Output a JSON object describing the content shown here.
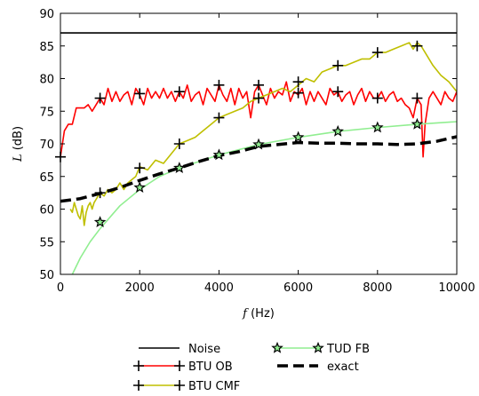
{
  "chart_data": {
    "type": "line",
    "title": "",
    "xlabel_var": "f",
    "xlabel_unit": " (Hz)",
    "ylabel_var": "L",
    "ylabel_unit": " (dB)",
    "xlim": [
      0,
      10000
    ],
    "ylim": [
      50,
      90
    ],
    "xticks": [
      "0",
      "2000",
      "4000",
      "6000",
      "8000",
      "10000"
    ],
    "yticks": [
      "50",
      "55",
      "60",
      "65",
      "70",
      "75",
      "80",
      "85",
      "90"
    ],
    "grid": false,
    "legend_position": "below",
    "series": [
      {
        "name": "Noise",
        "color": "#000000",
        "style": "solid",
        "marker": "none",
        "x": [
          0,
          10000
        ],
        "y": [
          87,
          87
        ]
      },
      {
        "name": "BTU OB",
        "color": "#ff0000",
        "style": "solid",
        "marker": "plus",
        "x": [
          0,
          100,
          200,
          300,
          400,
          500,
          600,
          700,
          800,
          900,
          1000,
          1100,
          1200,
          1300,
          1400,
          1500,
          1600,
          1700,
          1800,
          1900,
          2000,
          2100,
          2200,
          2300,
          2400,
          2500,
          2600,
          2700,
          2800,
          2900,
          3000,
          3100,
          3200,
          3300,
          3400,
          3500,
          3600,
          3700,
          3800,
          3900,
          4000,
          4100,
          4200,
          4300,
          4400,
          4500,
          4600,
          4700,
          4800,
          4900,
          5000,
          5100,
          5200,
          5300,
          5400,
          5500,
          5600,
          5700,
          5800,
          5900,
          6000,
          6100,
          6200,
          6300,
          6400,
          6500,
          6600,
          6700,
          6800,
          6900,
          7000,
          7100,
          7200,
          7300,
          7400,
          7500,
          7600,
          7700,
          7800,
          7900,
          8000,
          8100,
          8200,
          8300,
          8400,
          8500,
          8600,
          8700,
          8800,
          8900,
          9000,
          9100,
          9150,
          9200,
          9300,
          9400,
          9500,
          9600,
          9700,
          9800,
          9900,
          10000
        ],
        "y": [
          68,
          72,
          73,
          73,
          75.5,
          75.5,
          75.5,
          76,
          75,
          76,
          77,
          76,
          78.5,
          76.5,
          78,
          76.5,
          77.5,
          78,
          76,
          78.5,
          77.5,
          76,
          78.5,
          77,
          78,
          77,
          78.5,
          77,
          78,
          76.5,
          78,
          77,
          79,
          76.5,
          77.5,
          78,
          76,
          78.5,
          77.5,
          76.5,
          79,
          77.5,
          76.5,
          78.5,
          76,
          78.5,
          77,
          78,
          74,
          78,
          79,
          77.5,
          76,
          78.5,
          77,
          78,
          77.5,
          79.5,
          76.5,
          78,
          77.5,
          78.5,
          76,
          78,
          76.5,
          78,
          77,
          76,
          78.5,
          77.5,
          78,
          76.5,
          77.5,
          78,
          76,
          77.5,
          78.5,
          76.5,
          78,
          77,
          77,
          78,
          76.5,
          77.5,
          78,
          76.5,
          77,
          76,
          75.5,
          74,
          77,
          76,
          68,
          73,
          77,
          78,
          77,
          76,
          78,
          77,
          76.5,
          78
        ]
      },
      {
        "name": "BTU CMF",
        "color": "#bfbf00",
        "style": "solid",
        "marker": "plus",
        "x": [
          250,
          300,
          350,
          400,
          450,
          500,
          550,
          600,
          650,
          700,
          750,
          800,
          850,
          900,
          950,
          1000,
          1100,
          1200,
          1300,
          1400,
          1500,
          1600,
          1700,
          1800,
          1900,
          2000,
          2200,
          2400,
          2600,
          2800,
          3000,
          3200,
          3400,
          3600,
          3800,
          4000,
          4200,
          4400,
          4600,
          4800,
          5000,
          5200,
          5400,
          5600,
          5800,
          6000,
          6200,
          6400,
          6600,
          6800,
          7000,
          7200,
          7400,
          7600,
          7800,
          8000,
          8200,
          8400,
          8600,
          8800,
          8900,
          9000,
          9100,
          9200,
          9400,
          9600,
          9800,
          10000
        ],
        "y": [
          60,
          59.5,
          61,
          60,
          59,
          58.5,
          60.5,
          57.5,
          59.5,
          60.5,
          61,
          60,
          61,
          61.5,
          62,
          62.5,
          62,
          63,
          62.5,
          63,
          64,
          63,
          64,
          64.5,
          65,
          66.5,
          66,
          67.5,
          67,
          68.5,
          70,
          70.5,
          71,
          72,
          73,
          74,
          74.5,
          75,
          75.5,
          76.5,
          77,
          77.5,
          78,
          78.5,
          78,
          79,
          80,
          79.5,
          81,
          81.5,
          82,
          82,
          82.5,
          83,
          83,
          84,
          84,
          84.5,
          85,
          85.5,
          84.5,
          85.5,
          85,
          84,
          82,
          80.5,
          79.5,
          78
        ]
      },
      {
        "name": "TUD FB",
        "color": "#90ee90",
        "style": "solid",
        "marker": "star",
        "x": [
          300,
          500,
          750,
          1000,
          1500,
          2000,
          2500,
          3000,
          3500,
          4000,
          5000,
          6000,
          7000,
          8000,
          9000,
          10000
        ],
        "y": [
          50,
          52.5,
          55,
          57,
          60.5,
          63,
          65,
          66.3,
          67.3,
          68.3,
          69.9,
          71.0,
          71.9,
          72.5,
          73.0,
          73.4
        ],
        "marker_x": [
          1000,
          2000,
          3000,
          4000,
          5000,
          6000,
          7000,
          8000,
          9000
        ],
        "marker_y": [
          58,
          63.3,
          66.3,
          68.3,
          69.9,
          71.0,
          71.9,
          72.5,
          73.0
        ]
      },
      {
        "name": "exact",
        "color": "#000000",
        "style": "dashed",
        "marker": "none",
        "x": [
          0,
          500,
          1000,
          1500,
          2000,
          2500,
          3000,
          3500,
          4000,
          4500,
          5000,
          5500,
          6000,
          6500,
          7000,
          7500,
          8000,
          8500,
          9000,
          9500,
          10000
        ],
        "y": [
          61.2,
          61.6,
          62.4,
          63.3,
          64.4,
          65.4,
          66.3,
          67.3,
          68.2,
          68.8,
          69.6,
          69.9,
          70.2,
          70.1,
          70.1,
          70.0,
          70.0,
          69.9,
          70.0,
          70.4,
          71.1
        ]
      }
    ],
    "markers": {
      "BTU OB": {
        "x": [
          0,
          1000,
          2000,
          3000,
          4000,
          5000,
          6000,
          7000,
          8000,
          9000
        ],
        "y": [
          68,
          77,
          77.7,
          78,
          79,
          77,
          77.8,
          78,
          77,
          77
        ]
      },
      "BTU CMF": {
        "x": [
          1000,
          2000,
          3000,
          4000,
          5000,
          6000,
          7000,
          8000,
          9000
        ],
        "y": [
          62.5,
          66.3,
          70,
          74,
          79,
          79.5,
          82,
          84,
          85
        ]
      }
    },
    "legend": {
      "columns": [
        [
          "Noise",
          "BTU OB",
          "BTU CMF"
        ],
        [
          "TUD FB",
          "exact"
        ]
      ]
    }
  }
}
